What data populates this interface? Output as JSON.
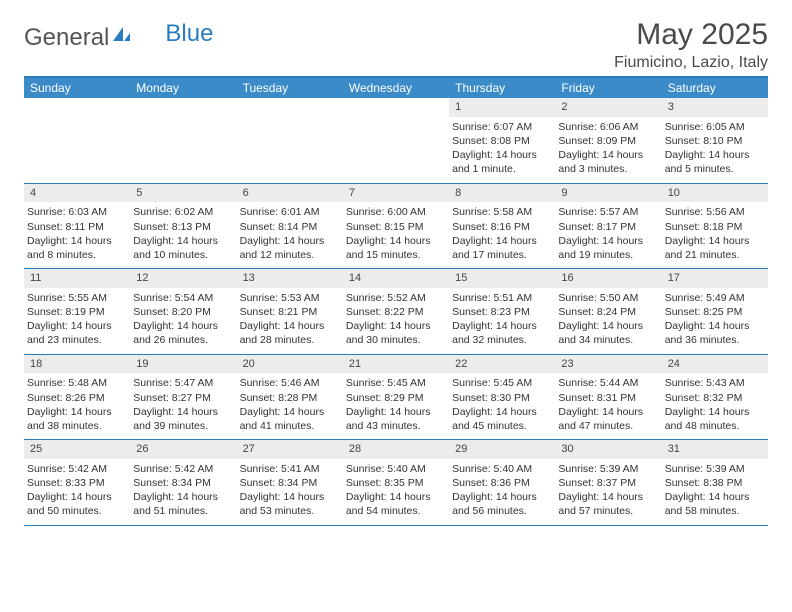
{
  "logo": {
    "part1": "General",
    "part2": "Blue"
  },
  "title": "May 2025",
  "location": "Fiumicino, Lazio, Italy",
  "colors": {
    "header_bar": "#3b8bc9",
    "top_border": "#2b7bbf",
    "row_border": "#2b7bbf",
    "daynum_bg": "#ececec",
    "text": "#333333",
    "white": "#ffffff"
  },
  "daysOfWeek": [
    "Sunday",
    "Monday",
    "Tuesday",
    "Wednesday",
    "Thursday",
    "Friday",
    "Saturday"
  ],
  "weeks": [
    [
      {
        "empty": true
      },
      {
        "empty": true
      },
      {
        "empty": true
      },
      {
        "empty": true
      },
      {
        "num": "1",
        "sunrise": "Sunrise: 6:07 AM",
        "sunset": "Sunset: 8:08 PM",
        "daylight": "Daylight: 14 hours and 1 minute."
      },
      {
        "num": "2",
        "sunrise": "Sunrise: 6:06 AM",
        "sunset": "Sunset: 8:09 PM",
        "daylight": "Daylight: 14 hours and 3 minutes."
      },
      {
        "num": "3",
        "sunrise": "Sunrise: 6:05 AM",
        "sunset": "Sunset: 8:10 PM",
        "daylight": "Daylight: 14 hours and 5 minutes."
      }
    ],
    [
      {
        "num": "4",
        "sunrise": "Sunrise: 6:03 AM",
        "sunset": "Sunset: 8:11 PM",
        "daylight": "Daylight: 14 hours and 8 minutes."
      },
      {
        "num": "5",
        "sunrise": "Sunrise: 6:02 AM",
        "sunset": "Sunset: 8:13 PM",
        "daylight": "Daylight: 14 hours and 10 minutes."
      },
      {
        "num": "6",
        "sunrise": "Sunrise: 6:01 AM",
        "sunset": "Sunset: 8:14 PM",
        "daylight": "Daylight: 14 hours and 12 minutes."
      },
      {
        "num": "7",
        "sunrise": "Sunrise: 6:00 AM",
        "sunset": "Sunset: 8:15 PM",
        "daylight": "Daylight: 14 hours and 15 minutes."
      },
      {
        "num": "8",
        "sunrise": "Sunrise: 5:58 AM",
        "sunset": "Sunset: 8:16 PM",
        "daylight": "Daylight: 14 hours and 17 minutes."
      },
      {
        "num": "9",
        "sunrise": "Sunrise: 5:57 AM",
        "sunset": "Sunset: 8:17 PM",
        "daylight": "Daylight: 14 hours and 19 minutes."
      },
      {
        "num": "10",
        "sunrise": "Sunrise: 5:56 AM",
        "sunset": "Sunset: 8:18 PM",
        "daylight": "Daylight: 14 hours and 21 minutes."
      }
    ],
    [
      {
        "num": "11",
        "sunrise": "Sunrise: 5:55 AM",
        "sunset": "Sunset: 8:19 PM",
        "daylight": "Daylight: 14 hours and 23 minutes."
      },
      {
        "num": "12",
        "sunrise": "Sunrise: 5:54 AM",
        "sunset": "Sunset: 8:20 PM",
        "daylight": "Daylight: 14 hours and 26 minutes."
      },
      {
        "num": "13",
        "sunrise": "Sunrise: 5:53 AM",
        "sunset": "Sunset: 8:21 PM",
        "daylight": "Daylight: 14 hours and 28 minutes."
      },
      {
        "num": "14",
        "sunrise": "Sunrise: 5:52 AM",
        "sunset": "Sunset: 8:22 PM",
        "daylight": "Daylight: 14 hours and 30 minutes."
      },
      {
        "num": "15",
        "sunrise": "Sunrise: 5:51 AM",
        "sunset": "Sunset: 8:23 PM",
        "daylight": "Daylight: 14 hours and 32 minutes."
      },
      {
        "num": "16",
        "sunrise": "Sunrise: 5:50 AM",
        "sunset": "Sunset: 8:24 PM",
        "daylight": "Daylight: 14 hours and 34 minutes."
      },
      {
        "num": "17",
        "sunrise": "Sunrise: 5:49 AM",
        "sunset": "Sunset: 8:25 PM",
        "daylight": "Daylight: 14 hours and 36 minutes."
      }
    ],
    [
      {
        "num": "18",
        "sunrise": "Sunrise: 5:48 AM",
        "sunset": "Sunset: 8:26 PM",
        "daylight": "Daylight: 14 hours and 38 minutes."
      },
      {
        "num": "19",
        "sunrise": "Sunrise: 5:47 AM",
        "sunset": "Sunset: 8:27 PM",
        "daylight": "Daylight: 14 hours and 39 minutes."
      },
      {
        "num": "20",
        "sunrise": "Sunrise: 5:46 AM",
        "sunset": "Sunset: 8:28 PM",
        "daylight": "Daylight: 14 hours and 41 minutes."
      },
      {
        "num": "21",
        "sunrise": "Sunrise: 5:45 AM",
        "sunset": "Sunset: 8:29 PM",
        "daylight": "Daylight: 14 hours and 43 minutes."
      },
      {
        "num": "22",
        "sunrise": "Sunrise: 5:45 AM",
        "sunset": "Sunset: 8:30 PM",
        "daylight": "Daylight: 14 hours and 45 minutes."
      },
      {
        "num": "23",
        "sunrise": "Sunrise: 5:44 AM",
        "sunset": "Sunset: 8:31 PM",
        "daylight": "Daylight: 14 hours and 47 minutes."
      },
      {
        "num": "24",
        "sunrise": "Sunrise: 5:43 AM",
        "sunset": "Sunset: 8:32 PM",
        "daylight": "Daylight: 14 hours and 48 minutes."
      }
    ],
    [
      {
        "num": "25",
        "sunrise": "Sunrise: 5:42 AM",
        "sunset": "Sunset: 8:33 PM",
        "daylight": "Daylight: 14 hours and 50 minutes."
      },
      {
        "num": "26",
        "sunrise": "Sunrise: 5:42 AM",
        "sunset": "Sunset: 8:34 PM",
        "daylight": "Daylight: 14 hours and 51 minutes."
      },
      {
        "num": "27",
        "sunrise": "Sunrise: 5:41 AM",
        "sunset": "Sunset: 8:34 PM",
        "daylight": "Daylight: 14 hours and 53 minutes."
      },
      {
        "num": "28",
        "sunrise": "Sunrise: 5:40 AM",
        "sunset": "Sunset: 8:35 PM",
        "daylight": "Daylight: 14 hours and 54 minutes."
      },
      {
        "num": "29",
        "sunrise": "Sunrise: 5:40 AM",
        "sunset": "Sunset: 8:36 PM",
        "daylight": "Daylight: 14 hours and 56 minutes."
      },
      {
        "num": "30",
        "sunrise": "Sunrise: 5:39 AM",
        "sunset": "Sunset: 8:37 PM",
        "daylight": "Daylight: 14 hours and 57 minutes."
      },
      {
        "num": "31",
        "sunrise": "Sunrise: 5:39 AM",
        "sunset": "Sunset: 8:38 PM",
        "daylight": "Daylight: 14 hours and 58 minutes."
      }
    ]
  ]
}
